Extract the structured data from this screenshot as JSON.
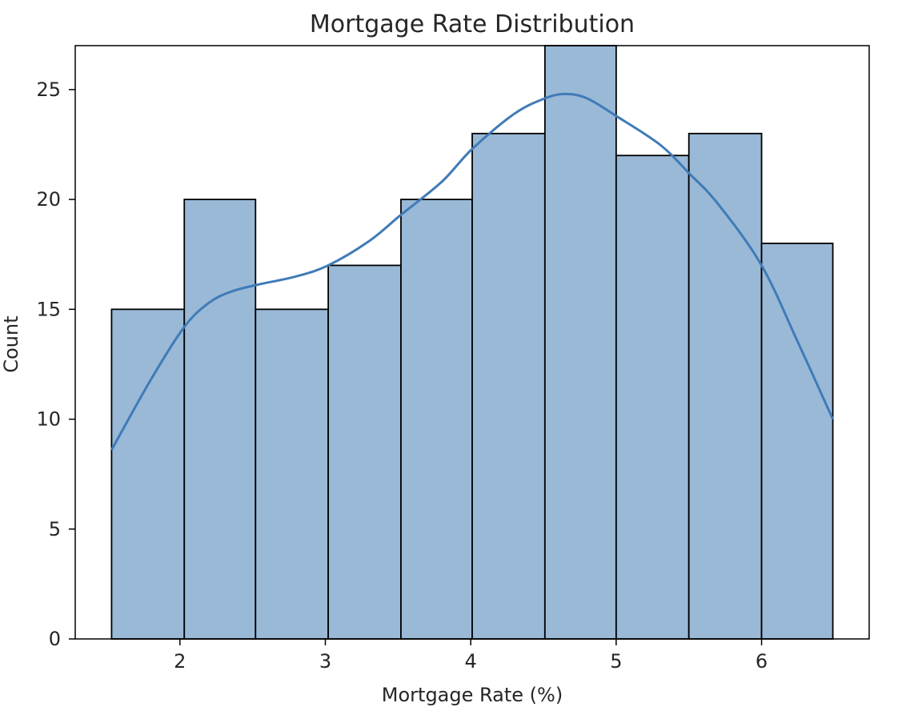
{
  "chart_data": {
    "type": "bar",
    "title": "Mortgage Rate Distribution",
    "xlabel": "Mortgage Rate (%)",
    "ylabel": "Count",
    "xlim": [
      1.28,
      6.74
    ],
    "ylim": [
      0,
      27.0
    ],
    "xticks": [
      2,
      3,
      4,
      5,
      6
    ],
    "yticks": [
      0,
      5,
      10,
      15,
      20,
      25
    ],
    "bins": [
      {
        "x0": 1.53,
        "x1": 2.03,
        "count": 15
      },
      {
        "x0": 2.03,
        "x1": 2.52,
        "count": 20
      },
      {
        "x0": 2.52,
        "x1": 3.02,
        "count": 15
      },
      {
        "x0": 3.02,
        "x1": 3.52,
        "count": 17
      },
      {
        "x0": 3.52,
        "x1": 4.01,
        "count": 20
      },
      {
        "x0": 4.01,
        "x1": 4.51,
        "count": 23
      },
      {
        "x0": 4.51,
        "x1": 5.0,
        "count": 27
      },
      {
        "x0": 5.0,
        "x1": 5.5,
        "count": 22
      },
      {
        "x0": 5.5,
        "x1": 6.0,
        "count": 23
      },
      {
        "x0": 6.0,
        "x1": 6.49,
        "count": 18
      }
    ],
    "kde": {
      "x": [
        1.53,
        1.8,
        2.03,
        2.2,
        2.35,
        2.52,
        2.8,
        3.02,
        3.3,
        3.52,
        3.8,
        4.01,
        4.3,
        4.51,
        4.65,
        4.8,
        5.0,
        5.3,
        5.5,
        5.7,
        6.0,
        6.25,
        6.49
      ],
      "y": [
        8.6,
        11.8,
        14.2,
        15.3,
        15.8,
        16.1,
        16.5,
        17.0,
        18.1,
        19.3,
        20.8,
        22.3,
        23.9,
        24.6,
        24.8,
        24.6,
        23.8,
        22.5,
        21.2,
        19.8,
        17.0,
        13.5,
        10.0
      ]
    },
    "grid": false,
    "legend": "none",
    "colors": {
      "bar_fill": "#9ab9d7",
      "bar_edge": "#000000",
      "kde_line": "#3f7bb7",
      "axes": "#000000",
      "text": "#262626"
    }
  }
}
